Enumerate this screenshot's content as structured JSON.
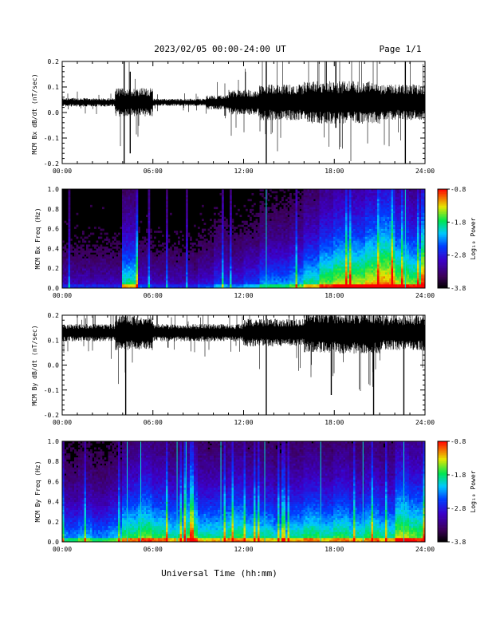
{
  "header": {
    "date_range": "2023/02/05  00:00-24:00 UT",
    "page": "Page 1/1"
  },
  "xlabel": "Universal Time (hh:mm)",
  "time_ticks": [
    "00:00",
    "06:00",
    "12:00",
    "18:00",
    "24:00"
  ],
  "colorbar": {
    "label": "Log₁₀ Power",
    "ticks": [
      "-0.8",
      "-1.8",
      "-2.8",
      "-3.8"
    ],
    "range": [
      -3.8,
      -0.8
    ]
  },
  "chart_data": [
    {
      "type": "line",
      "ylabel": "MCM Bx dB/dt (nT/sec)",
      "x_range_hours": [
        0,
        24
      ],
      "ylim": [
        -0.2,
        0.2
      ],
      "yticks": [
        "-0.2",
        "-0.1",
        "0.0",
        "0.1",
        "0.2"
      ],
      "baseline": 0.04,
      "segments": [
        {
          "x0": 0,
          "x1": 3.5,
          "amp": 0.012
        },
        {
          "x0": 3.5,
          "x1": 6,
          "amp": 0.04
        },
        {
          "x0": 6,
          "x1": 9.5,
          "amp": 0.01
        },
        {
          "x0": 9.5,
          "x1": 11,
          "amp": 0.02
        },
        {
          "x0": 11,
          "x1": 13,
          "amp": 0.035
        },
        {
          "x0": 13,
          "x1": 16,
          "amp": 0.05
        },
        {
          "x0": 16,
          "x1": 21,
          "amp": 0.06
        },
        {
          "x0": 21,
          "x1": 24,
          "amp": 0.05
        }
      ],
      "spikes": [
        {
          "x": 4.1,
          "min": -0.2,
          "max": 0.2
        },
        {
          "x": 4.5,
          "min": -0.16,
          "max": 0.16
        },
        {
          "x": 13.5,
          "min": -0.2,
          "max": 0.2
        },
        {
          "x": 18.1,
          "min": -0.06,
          "max": 0.2
        },
        {
          "x": 22.7,
          "min": -0.2,
          "max": 0.2
        }
      ]
    },
    {
      "type": "heatmap",
      "ylabel": "MCM Bx Freq (Hz)",
      "x_range_hours": [
        0,
        24
      ],
      "ylim": [
        0,
        1.0
      ],
      "yticks": [
        "0.0",
        "0.2",
        "0.4",
        "0.6",
        "0.8",
        "1.0"
      ],
      "z_range": [
        -3.8,
        -0.8
      ],
      "activity": [
        0.3,
        0.3,
        0.3,
        0.3,
        0.7,
        0.35,
        0.3,
        0.3,
        0.3,
        0.35,
        0.45,
        0.4,
        0.45,
        0.55,
        0.55,
        0.6,
        0.7,
        0.8,
        0.85,
        0.85,
        0.9,
        0.95,
        0.85,
        0.8
      ],
      "bright_lines_hours": [
        13.5,
        22.7
      ]
    },
    {
      "type": "line",
      "ylabel": "MCM By dB/dt (nT/sec)",
      "x_range_hours": [
        0,
        24
      ],
      "ylim": [
        -0.2,
        0.2
      ],
      "yticks": [
        "-0.2",
        "-0.1",
        "0.0",
        "0.1",
        "0.2"
      ],
      "baseline": 0.13,
      "segments": [
        {
          "x0": 0,
          "x1": 3.5,
          "amp": 0.025
        },
        {
          "x0": 3.5,
          "x1": 6,
          "amp": 0.05
        },
        {
          "x0": 6,
          "x1": 12,
          "amp": 0.025
        },
        {
          "x0": 12,
          "x1": 16,
          "amp": 0.04
        },
        {
          "x0": 16,
          "x1": 21,
          "amp": 0.06
        },
        {
          "x0": 21,
          "x1": 24,
          "amp": 0.05
        }
      ],
      "spikes": [
        {
          "x": 4.2,
          "min": -0.2,
          "max": 0.2
        },
        {
          "x": 13.5,
          "min": -0.2,
          "max": 0.2
        },
        {
          "x": 17.8,
          "min": -0.12,
          "max": 0.2
        },
        {
          "x": 20.6,
          "min": -0.2,
          "max": 0.2
        },
        {
          "x": 22.6,
          "min": -0.2,
          "max": 0.2
        }
      ]
    },
    {
      "type": "heatmap",
      "ylabel": "MCM By Freq (Hz)",
      "x_range_hours": [
        0,
        24
      ],
      "ylim": [
        0,
        1.0
      ],
      "yticks": [
        "0.0",
        "0.2",
        "0.4",
        "0.6",
        "0.8",
        "1.0"
      ],
      "z_range": [
        -3.8,
        -0.8
      ],
      "activity": [
        0.55,
        0.6,
        0.55,
        0.6,
        0.75,
        0.8,
        0.75,
        0.7,
        0.8,
        0.7,
        0.7,
        0.75,
        0.7,
        0.7,
        0.65,
        0.7,
        0.75,
        0.7,
        0.75,
        0.7,
        0.75,
        0.7,
        0.85,
        0.8
      ],
      "bright_lines_hours": [
        4.3,
        5.2,
        7.6,
        8.2,
        10.5,
        13.4,
        17.1,
        19.9,
        22.6
      ]
    }
  ]
}
